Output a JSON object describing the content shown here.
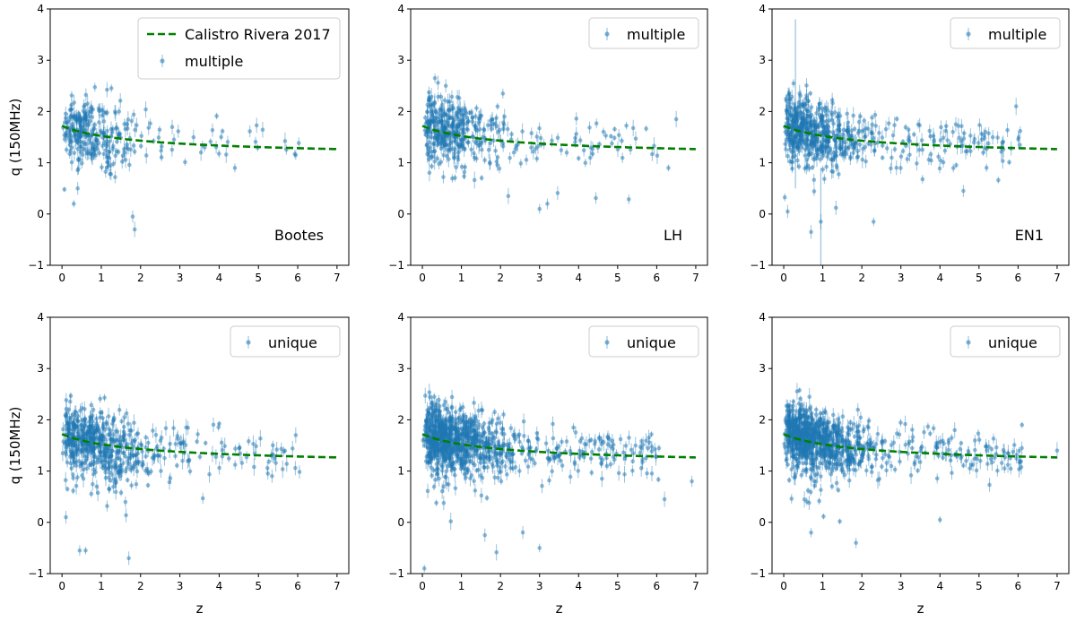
{
  "figure_title": "",
  "colors": {
    "points": "#1f77b4",
    "model_line": "#008000",
    "axes": "#000000",
    "legend_border": "#cccccc"
  },
  "chart_data": [
    {
      "type": "scatter",
      "panel": "top-left",
      "field": "Bootes",
      "sample": "multiple",
      "xlabel": "",
      "ylabel": "q (150MHz)",
      "xlim": [
        -0.3,
        7.3
      ],
      "ylim": [
        -1,
        4
      ],
      "xticks": [
        0,
        1,
        2,
        3,
        4,
        5,
        6,
        7
      ],
      "yticks": [
        -1,
        0,
        1,
        2,
        3,
        4
      ],
      "legend": {
        "position": "top-right",
        "entries": [
          "Calistro Rivera 2017",
          "multiple"
        ]
      },
      "annotation": "Bootes",
      "model_line": {
        "name": "Calistro Rivera 2017",
        "x": [
          0.0,
          0.5,
          1.0,
          1.5,
          2.0,
          2.5,
          3.0,
          3.5,
          4.0,
          4.5,
          5.0,
          5.5,
          6.0,
          6.5,
          7.0
        ],
        "y": [
          1.72,
          1.6,
          1.5,
          1.42,
          1.36,
          1.31,
          1.27,
          1.23,
          1.2,
          1.17,
          1.15,
          1.13,
          1.11,
          1.1,
          1.09
        ]
      },
      "scatter_model": {
        "n_points": 300,
        "seed": 11,
        "outliers": [
          [
            1.8,
            -0.05
          ],
          [
            1.85,
            -0.3
          ],
          [
            0.3,
            0.2
          ],
          [
            0.4,
            0.5
          ],
          [
            5.95,
            1.15
          ],
          [
            4.4,
            0.9
          ]
        ]
      }
    },
    {
      "type": "scatter",
      "panel": "top-middle",
      "field": "LH",
      "sample": "multiple",
      "xlabel": "",
      "ylabel": "",
      "xlim": [
        -0.3,
        7.3
      ],
      "ylim": [
        -1,
        4
      ],
      "xticks": [
        0,
        1,
        2,
        3,
        4,
        5,
        6,
        7
      ],
      "yticks": [
        -1,
        0,
        1,
        2,
        3,
        4
      ],
      "legend": {
        "position": "top-right",
        "entries": [
          "multiple"
        ]
      },
      "annotation": "LH",
      "model_line": {
        "name": "Calistro Rivera 2017",
        "x": [
          0.0,
          0.5,
          1.0,
          1.5,
          2.0,
          2.5,
          3.0,
          3.5,
          4.0,
          4.5,
          5.0,
          5.5,
          6.0,
          6.5,
          7.0
        ],
        "y": [
          1.72,
          1.6,
          1.5,
          1.42,
          1.36,
          1.31,
          1.27,
          1.23,
          1.2,
          1.17,
          1.15,
          1.13,
          1.11,
          1.1,
          1.09
        ]
      },
      "scatter_model": {
        "n_points": 420,
        "seed": 23,
        "outliers": [
          [
            3.0,
            0.1
          ],
          [
            3.2,
            0.2
          ],
          [
            6.5,
            1.85
          ],
          [
            6.3,
            0.9
          ],
          [
            0.6,
            2.5
          ],
          [
            2.2,
            0.35
          ]
        ]
      }
    },
    {
      "type": "scatter",
      "panel": "top-right",
      "field": "EN1",
      "sample": "multiple",
      "xlabel": "",
      "ylabel": "",
      "xlim": [
        -0.3,
        7.3
      ],
      "ylim": [
        -1,
        4
      ],
      "xticks": [
        0,
        1,
        2,
        3,
        4,
        5,
        6,
        7
      ],
      "yticks": [
        -1,
        0,
        1,
        2,
        3,
        4
      ],
      "legend": {
        "position": "top-right",
        "entries": [
          "multiple"
        ]
      },
      "annotation": "EN1",
      "model_line": {
        "name": "Calistro Rivera 2017",
        "x": [
          0.0,
          0.5,
          1.0,
          1.5,
          2.0,
          2.5,
          3.0,
          3.5,
          4.0,
          4.5,
          5.0,
          5.5,
          6.0,
          6.5,
          7.0
        ],
        "y": [
          1.72,
          1.6,
          1.5,
          1.42,
          1.36,
          1.31,
          1.27,
          1.23,
          1.2,
          1.17,
          1.15,
          1.13,
          1.11,
          1.1,
          1.09
        ]
      },
      "scatter_model": {
        "n_points": 620,
        "seed": 37,
        "outliers": [
          [
            0.25,
            2.55
          ],
          [
            0.1,
            0.05
          ],
          [
            0.7,
            -0.35
          ],
          [
            0.95,
            -0.15
          ],
          [
            4.6,
            0.45
          ],
          [
            5.95,
            2.1
          ],
          [
            2.3,
            -0.15
          ]
        ]
      }
    },
    {
      "type": "scatter",
      "panel": "bottom-left",
      "field": "Bootes",
      "sample": "unique",
      "xlabel": "z",
      "ylabel": "q (150MHz)",
      "xlim": [
        -0.3,
        7.3
      ],
      "ylim": [
        -1,
        4
      ],
      "xticks": [
        0,
        1,
        2,
        3,
        4,
        5,
        6,
        7
      ],
      "yticks": [
        -1,
        0,
        1,
        2,
        3,
        4
      ],
      "legend": {
        "position": "top-right",
        "entries": [
          "unique"
        ]
      },
      "annotation": "",
      "model_line": {
        "name": "Calistro Rivera 2017",
        "x": [
          0.0,
          0.5,
          1.0,
          1.5,
          2.0,
          2.5,
          3.0,
          3.5,
          4.0,
          4.5,
          5.0,
          5.5,
          6.0,
          6.5,
          7.0
        ],
        "y": [
          1.72,
          1.6,
          1.5,
          1.42,
          1.36,
          1.31,
          1.27,
          1.23,
          1.2,
          1.17,
          1.15,
          1.13,
          1.11,
          1.1,
          1.09
        ]
      },
      "scatter_model": {
        "n_points": 600,
        "seed": 51,
        "outliers": [
          [
            0.45,
            -0.55
          ],
          [
            0.6,
            -0.55
          ],
          [
            1.7,
            -0.7
          ],
          [
            5.95,
            1.7
          ],
          [
            0.1,
            0.1
          ]
        ]
      }
    },
    {
      "type": "scatter",
      "panel": "bottom-middle",
      "field": "LH",
      "sample": "unique",
      "xlabel": "z",
      "ylabel": "",
      "xlim": [
        -0.3,
        7.3
      ],
      "ylim": [
        -1,
        4
      ],
      "xticks": [
        0,
        1,
        2,
        3,
        4,
        5,
        6,
        7
      ],
      "yticks": [
        -1,
        0,
        1,
        2,
        3,
        4
      ],
      "legend": {
        "position": "top-right",
        "entries": [
          "unique"
        ]
      },
      "annotation": "",
      "model_line": {
        "name": "Calistro Rivera 2017",
        "x": [
          0.0,
          0.5,
          1.0,
          1.5,
          2.0,
          2.5,
          3.0,
          3.5,
          4.0,
          4.5,
          5.0,
          5.5,
          6.0,
          6.5,
          7.0
        ],
        "y": [
          1.72,
          1.6,
          1.5,
          1.42,
          1.36,
          1.31,
          1.27,
          1.23,
          1.2,
          1.17,
          1.15,
          1.13,
          1.11,
          1.1,
          1.09
        ]
      },
      "scatter_model": {
        "n_points": 950,
        "seed": 67,
        "outliers": [
          [
            0.05,
            -0.9
          ],
          [
            3.0,
            -0.5
          ],
          [
            6.2,
            0.45
          ],
          [
            6.9,
            0.8
          ],
          [
            1.6,
            -0.25
          ]
        ]
      }
    },
    {
      "type": "scatter",
      "panel": "bottom-right",
      "field": "EN1",
      "sample": "unique",
      "xlabel": "z",
      "ylabel": "",
      "xlim": [
        -0.3,
        7.3
      ],
      "ylim": [
        -1,
        4
      ],
      "xticks": [
        0,
        1,
        2,
        3,
        4,
        5,
        6,
        7
      ],
      "yticks": [
        -1,
        0,
        1,
        2,
        3,
        4
      ],
      "legend": {
        "position": "top-right",
        "entries": [
          "unique"
        ]
      },
      "annotation": "",
      "model_line": {
        "name": "Calistro Rivera 2017",
        "x": [
          0.0,
          0.5,
          1.0,
          1.5,
          2.0,
          2.5,
          3.0,
          3.5,
          4.0,
          4.5,
          5.0,
          5.5,
          6.0,
          6.5,
          7.0
        ],
        "y": [
          1.72,
          1.6,
          1.5,
          1.42,
          1.36,
          1.31,
          1.27,
          1.23,
          1.2,
          1.17,
          1.15,
          1.13,
          1.11,
          1.1,
          1.09
        ]
      },
      "scatter_model": {
        "n_points": 950,
        "seed": 83,
        "outliers": [
          [
            1.85,
            -0.4
          ],
          [
            4.0,
            0.05
          ],
          [
            6.1,
            1.9
          ],
          [
            7.0,
            1.4
          ],
          [
            0.7,
            -0.2
          ]
        ]
      }
    }
  ]
}
